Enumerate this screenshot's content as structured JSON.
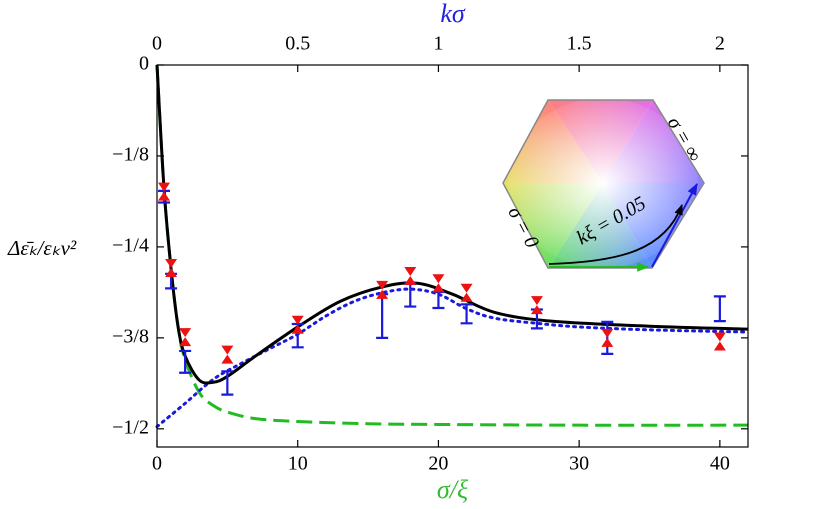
{
  "chart_data": {
    "type": "line",
    "x_label": "σ/ξ",
    "x_label_color": "#33bb33",
    "x2_label": "kσ",
    "x2_label_color": "#2222dd",
    "y_label": "Δε̄ₖ/εₖv²",
    "xlim": [
      0,
      42
    ],
    "xticks": [
      0,
      10,
      20,
      30,
      40
    ],
    "x2lim": [
      0,
      2.1
    ],
    "x2ticks": [
      0,
      0.5,
      1,
      1.5,
      2
    ],
    "ylim": [
      -0.525,
      0
    ],
    "yticks": [
      0,
      {
        "value": -0.125,
        "label": "−1/8"
      },
      {
        "value": -0.25,
        "label": "−1/4"
      },
      {
        "value": -0.375,
        "label": "−3/8"
      },
      {
        "value": -0.5,
        "label": "−1/2"
      }
    ],
    "series": [
      {
        "kind": "line",
        "style": "dashed",
        "color": "#22bb22",
        "x": [
          0,
          0.5,
          1,
          1.5,
          2,
          3,
          4,
          5,
          7,
          10,
          15,
          20,
          30,
          42
        ],
        "values": [
          0,
          -0.17,
          -0.28,
          -0.36,
          -0.405,
          -0.45,
          -0.468,
          -0.477,
          -0.486,
          -0.49,
          -0.493,
          -0.494,
          -0.495,
          -0.495
        ]
      },
      {
        "kind": "line",
        "style": "dotted",
        "color": "#1a1add",
        "x": [
          0,
          2,
          4,
          6,
          8,
          10,
          12,
          14,
          16,
          18,
          20,
          22,
          24,
          27,
          30,
          35,
          42
        ],
        "values": [
          -0.497,
          -0.465,
          -0.432,
          -0.41,
          -0.39,
          -0.37,
          -0.345,
          -0.325,
          -0.313,
          -0.308,
          -0.315,
          -0.335,
          -0.348,
          -0.355,
          -0.36,
          -0.364,
          -0.367
        ]
      },
      {
        "kind": "line",
        "style": "solid",
        "color": "#000000",
        "x": [
          0,
          0.5,
          1,
          1.5,
          2,
          3,
          4,
          5,
          7,
          10,
          13,
          16,
          18.5,
          21,
          24,
          28,
          35,
          42
        ],
        "values": [
          0,
          -0.17,
          -0.28,
          -0.36,
          -0.4,
          -0.433,
          -0.436,
          -0.428,
          -0.4,
          -0.36,
          -0.325,
          -0.305,
          -0.3,
          -0.315,
          -0.34,
          -0.352,
          -0.359,
          -0.363
        ]
      },
      {
        "kind": "errorbar",
        "color": "#1a1add",
        "x": [
          0.5,
          1,
          2,
          5,
          10,
          16,
          18,
          20,
          22,
          27,
          32,
          40
        ],
        "values": [
          -0.181,
          -0.297,
          -0.408,
          -0.437,
          -0.372,
          -0.345,
          -0.316,
          -0.323,
          -0.342,
          -0.349,
          -0.375,
          -0.335
        ],
        "errors": [
          0.008,
          0.01,
          0.015,
          0.016,
          0.016,
          0.03,
          0.016,
          0.011,
          0.013,
          0.013,
          0.022,
          0.017
        ]
      },
      {
        "kind": "marker",
        "color": "#ee1111",
        "x": [
          0.5,
          1,
          2,
          5,
          10,
          16,
          18,
          20,
          22,
          27,
          32,
          40
        ],
        "values": [
          -0.174,
          -0.279,
          -0.374,
          -0.398,
          -0.357,
          -0.309,
          -0.29,
          -0.3,
          -0.313,
          -0.33,
          -0.375,
          -0.38
        ]
      }
    ],
    "annotations": [
      "σ = ∞",
      "kξ = 0.05",
      "σ = 0"
    ]
  }
}
